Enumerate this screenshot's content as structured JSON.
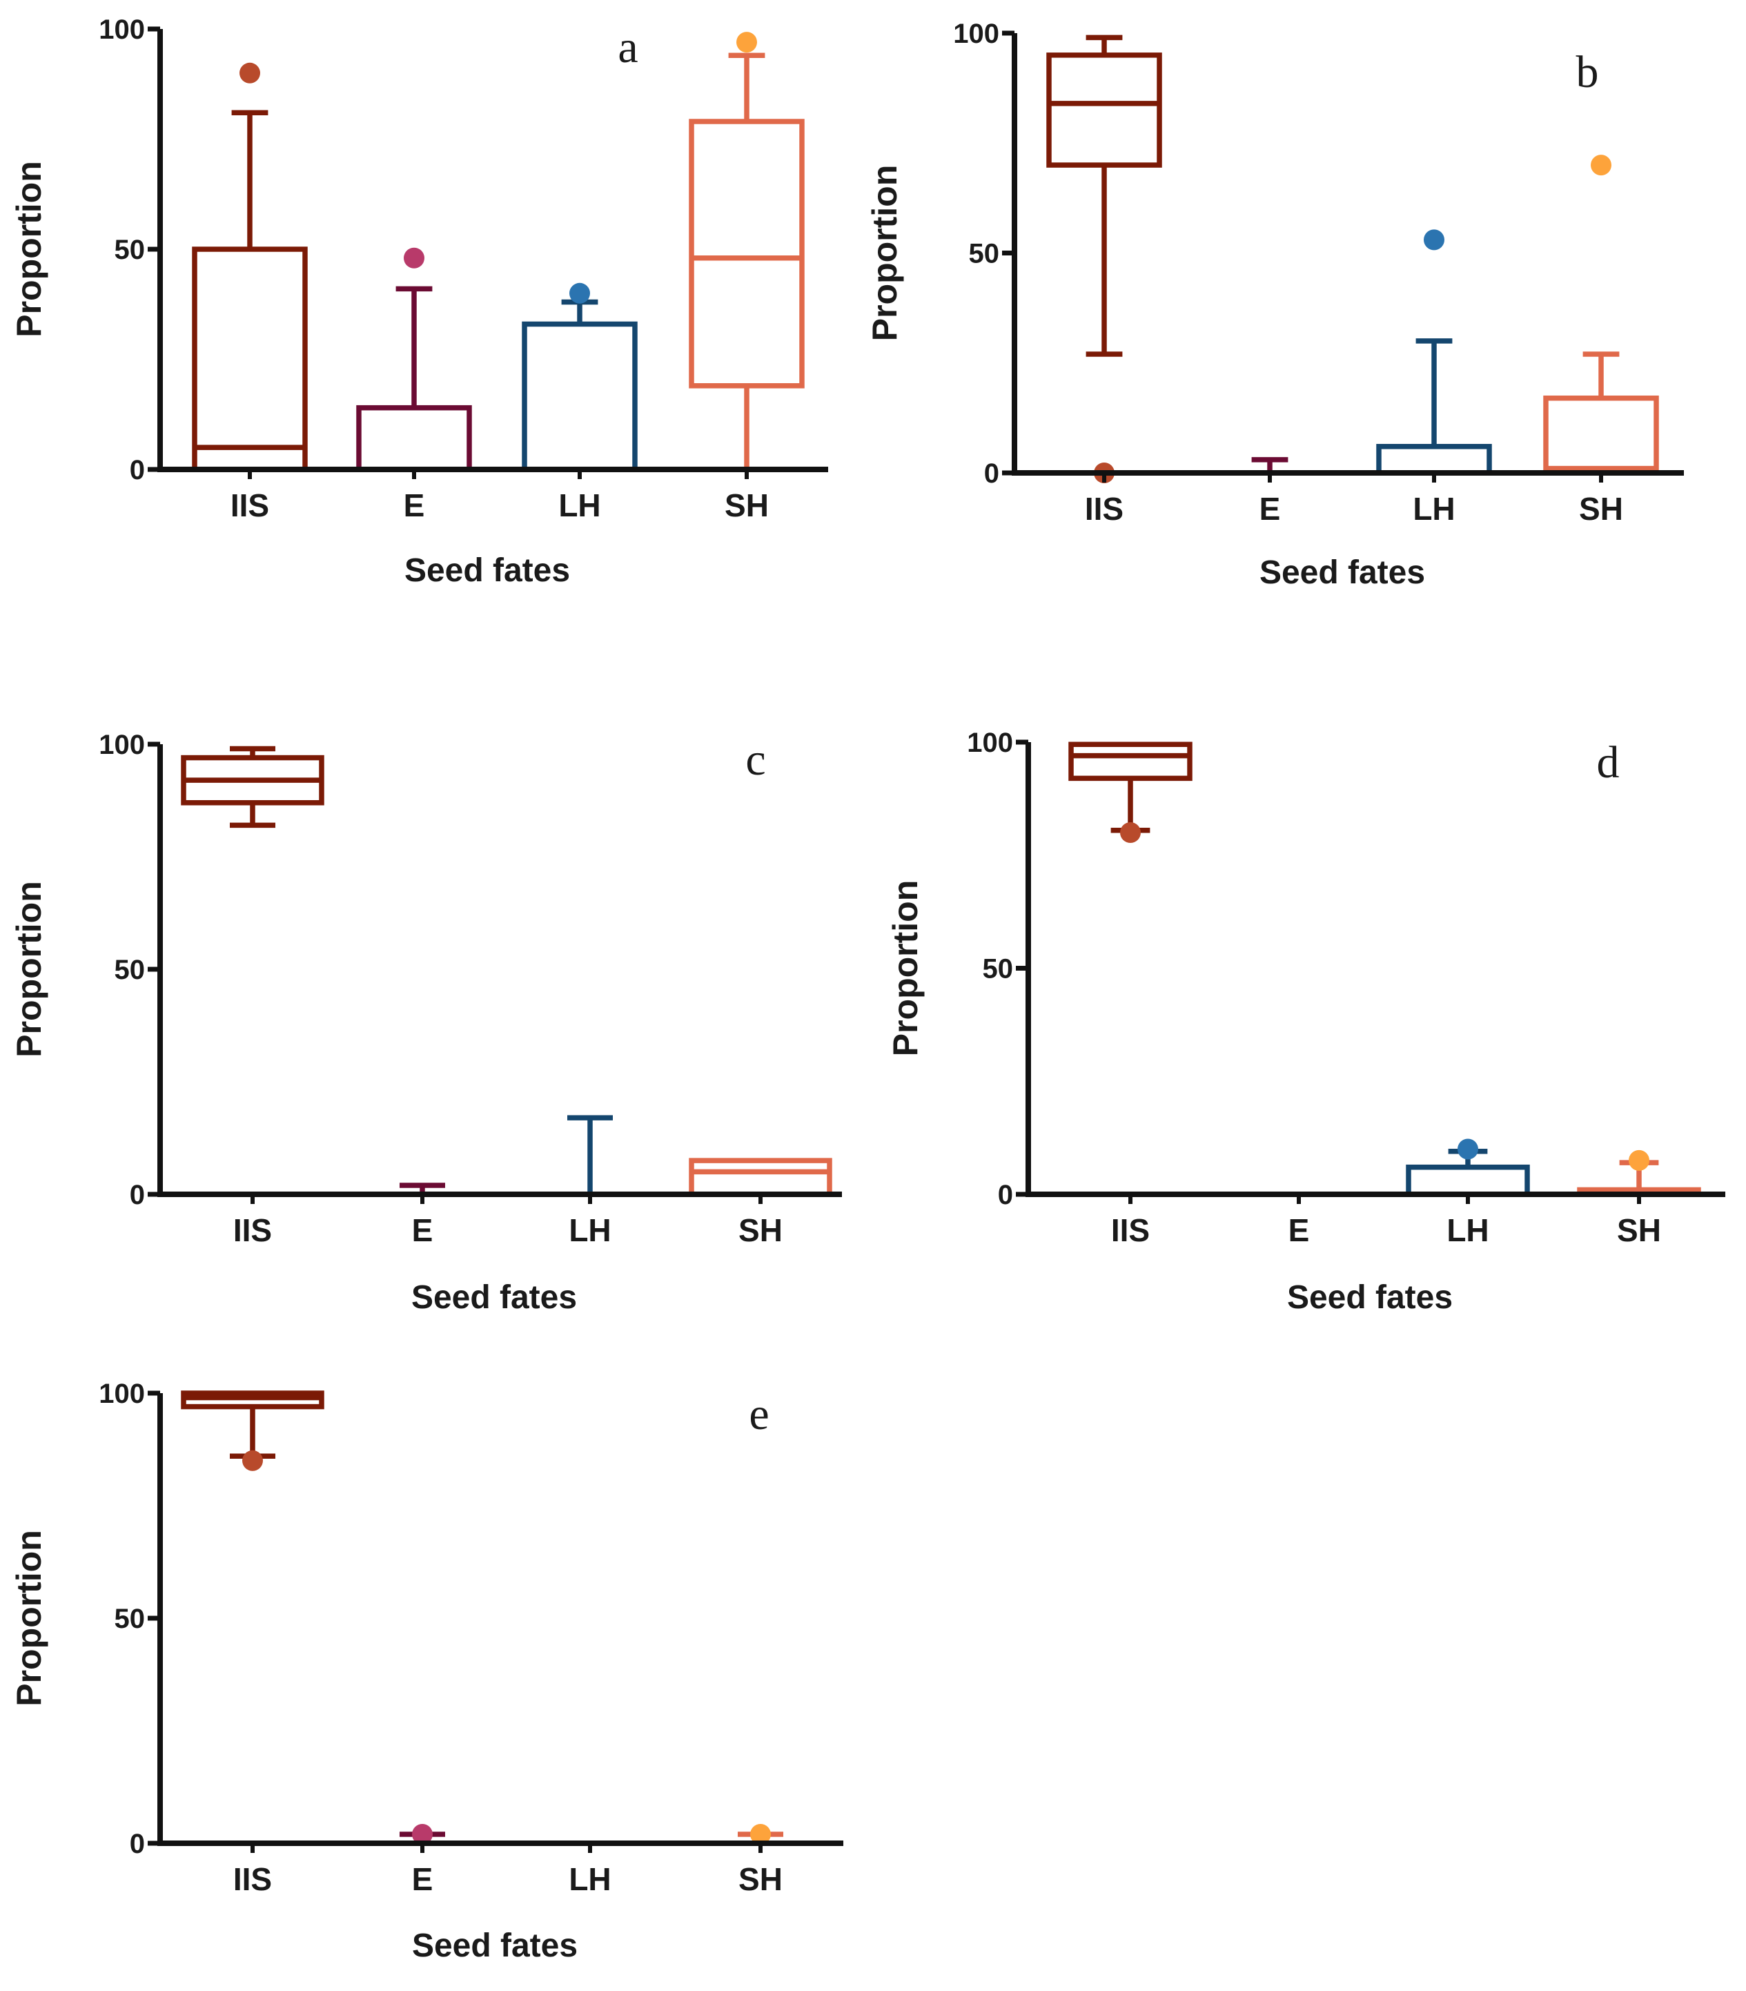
{
  "chart_data": [
    {
      "type": "box",
      "panel_label": "a",
      "title": "",
      "xlabel": "Seed fates",
      "ylabel": "Proportion",
      "ylim": [
        0,
        100
      ],
      "yticks": [
        0,
        50,
        100
      ],
      "categories": [
        "IIS",
        "E",
        "LH",
        "SH"
      ],
      "boxes": [
        {
          "category": "IIS",
          "whisker_low": 0,
          "q1": 0,
          "median": 5,
          "q3": 50,
          "whisker_high": 81,
          "outliers": [
            90
          ]
        },
        {
          "category": "E",
          "whisker_low": 0,
          "q1": 0,
          "median": 0,
          "q3": 14,
          "whisker_high": 41,
          "outliers": [
            48
          ]
        },
        {
          "category": "LH",
          "whisker_low": 0,
          "q1": 0,
          "median": 0,
          "q3": 33,
          "whisker_high": 38,
          "outliers": [
            40
          ]
        },
        {
          "category": "SH",
          "whisker_low": 0,
          "q1": 19,
          "median": 48,
          "q3": 79,
          "whisker_high": 94,
          "outliers": [
            97
          ]
        }
      ]
    },
    {
      "type": "box",
      "panel_label": "b",
      "title": "",
      "xlabel": "Seed fates",
      "ylabel": "Proportion",
      "ylim": [
        0,
        100
      ],
      "yticks": [
        0,
        50,
        100
      ],
      "categories": [
        "IIS",
        "E",
        "LH",
        "SH"
      ],
      "boxes": [
        {
          "category": "IIS",
          "whisker_low": 27,
          "q1": 70,
          "median": 84,
          "q3": 95,
          "whisker_high": 99,
          "outliers": [
            0
          ]
        },
        {
          "category": "E",
          "whisker_low": 0,
          "q1": 0,
          "median": 0,
          "q3": 0,
          "whisker_high": 3,
          "outliers": []
        },
        {
          "category": "LH",
          "whisker_low": 0,
          "q1": 0,
          "median": 0,
          "q3": 6,
          "whisker_high": 30,
          "outliers": [
            53
          ]
        },
        {
          "category": "SH",
          "whisker_low": 0,
          "q1": 0,
          "median": 1,
          "q3": 17,
          "whisker_high": 27,
          "outliers": [
            70
          ]
        }
      ]
    },
    {
      "type": "box",
      "panel_label": "c",
      "title": "",
      "xlabel": "Seed fates",
      "ylabel": "Proportion",
      "ylim": [
        0,
        100
      ],
      "yticks": [
        0,
        50,
        100
      ],
      "categories": [
        "IIS",
        "E",
        "LH",
        "SH"
      ],
      "boxes": [
        {
          "category": "IIS",
          "whisker_low": 82,
          "q1": 87,
          "median": 92,
          "q3": 97,
          "whisker_high": 99,
          "outliers": []
        },
        {
          "category": "E",
          "whisker_low": 0,
          "q1": 0,
          "median": 0,
          "q3": 0,
          "whisker_high": 2,
          "outliers": []
        },
        {
          "category": "LH",
          "whisker_low": 0,
          "q1": 0,
          "median": 0,
          "q3": 0,
          "whisker_high": 17,
          "outliers": []
        },
        {
          "category": "SH",
          "whisker_low": 0,
          "q1": 0,
          "median": 5,
          "q3": 7.5,
          "whisker_high": 7.5,
          "outliers": []
        }
      ]
    },
    {
      "type": "box",
      "panel_label": "d",
      "title": "",
      "xlabel": "Seed fates",
      "ylabel": "Proportion",
      "ylim": [
        0,
        100
      ],
      "yticks": [
        0,
        50,
        100
      ],
      "categories": [
        "IIS",
        "E",
        "LH",
        "SH"
      ],
      "boxes": [
        {
          "category": "IIS",
          "whisker_low": 80.5,
          "q1": 92,
          "median": 97,
          "q3": 99.5,
          "whisker_high": 99.5,
          "outliers": [
            80
          ]
        },
        {
          "category": "E",
          "whisker_low": 0,
          "q1": 0,
          "median": 0,
          "q3": 0,
          "whisker_high": 0,
          "outliers": []
        },
        {
          "category": "LH",
          "whisker_low": 0,
          "q1": 0,
          "median": 0,
          "q3": 6,
          "whisker_high": 9.5,
          "outliers": [
            10
          ]
        },
        {
          "category": "SH",
          "whisker_low": 0,
          "q1": 0,
          "median": 0,
          "q3": 1,
          "whisker_high": 7,
          "outliers": [
            7.5
          ]
        }
      ]
    },
    {
      "type": "box",
      "panel_label": "e",
      "title": "",
      "xlabel": "Seed fates",
      "ylabel": "Proportion",
      "ylim": [
        0,
        100
      ],
      "yticks": [
        0,
        50,
        100
      ],
      "categories": [
        "IIS",
        "E",
        "LH",
        "SH"
      ],
      "boxes": [
        {
          "category": "IIS",
          "whisker_low": 86,
          "q1": 97,
          "median": 99,
          "q3": 100,
          "whisker_high": 100,
          "outliers": [
            85
          ]
        },
        {
          "category": "E",
          "whisker_low": 0,
          "q1": 0,
          "median": 0,
          "q3": 0,
          "whisker_high": 2,
          "outliers": [
            2
          ]
        },
        {
          "category": "LH",
          "whisker_low": 0,
          "q1": 0,
          "median": 0,
          "q3": 0,
          "whisker_high": 0,
          "outliers": []
        },
        {
          "category": "SH",
          "whisker_low": 0,
          "q1": 0,
          "median": 0,
          "q3": 0,
          "whisker_high": 2,
          "outliers": [
            2
          ]
        }
      ]
    }
  ],
  "colors": {
    "IIS": "#7b1a06",
    "E": "#6b0b33",
    "LH": "#14466e",
    "SH": "#e0694a",
    "outliers": {
      "IIS": "#b84a2b",
      "E": "#b83a6a",
      "LH": "#2b74b0",
      "SH": "#fda33b"
    },
    "axis": "#111111"
  }
}
